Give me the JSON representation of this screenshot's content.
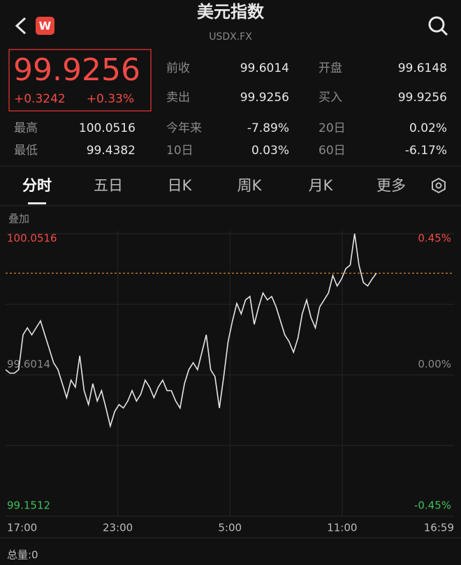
{
  "header": {
    "title": "美元指数",
    "subtitle": "USDX.FX"
  },
  "quote": {
    "price": "99.9256",
    "change": "+0.3242",
    "change_pct": "+0.33%"
  },
  "stats": {
    "rows": [
      [
        {
          "label": "前收",
          "value": "99.6014"
        },
        {
          "label": "开盘",
          "value": "99.6148"
        }
      ],
      [
        {
          "label": "卖出",
          "value": "99.9256"
        },
        {
          "label": "买入",
          "value": "99.9256"
        }
      ],
      [
        {
          "label": "最高",
          "value": "100.0516"
        },
        {
          "label": "今年来",
          "value": "-7.89%"
        },
        {
          "label": "20日",
          "value": "0.02%"
        }
      ],
      [
        {
          "label": "最低",
          "value": "99.4382"
        },
        {
          "label": "10日",
          "value": "0.03%"
        },
        {
          "label": "60日",
          "value": "-6.17%"
        }
      ]
    ]
  },
  "tabs": [
    "分时",
    "五日",
    "日K",
    "周K",
    "月K",
    "更多"
  ],
  "chart_data": {
    "type": "line",
    "overlay_label": "叠加",
    "volume_label": "总量:0",
    "color": "#e6e6e6",
    "x": [
      0,
      14,
      28,
      42,
      56,
      70,
      84,
      98,
      112,
      126,
      140,
      154,
      168,
      182,
      196,
      210,
      224,
      238,
      252,
      266,
      280,
      294,
      308,
      322,
      336,
      350,
      364,
      378,
      392,
      406,
      420,
      434,
      448,
      462,
      476,
      490,
      504,
      518,
      532,
      546,
      560,
      574,
      588,
      602,
      616,
      630,
      644,
      658,
      672,
      686,
      700,
      714,
      728,
      742,
      756,
      770,
      784,
      798,
      812,
      826,
      840,
      854,
      868,
      882,
      896,
      910,
      924,
      938,
      952,
      966,
      980,
      994,
      1008,
      1022,
      1036,
      1050,
      1064,
      1078,
      1092,
      1106,
      1120,
      1134,
      1148,
      1162,
      1176,
      1190
    ],
    "values": [
      99.6181,
      99.607,
      99.607,
      99.6181,
      99.7292,
      99.7515,
      99.7292,
      99.7515,
      99.7737,
      99.7292,
      99.6848,
      99.6403,
      99.6181,
      99.5736,
      99.5291,
      99.5847,
      99.5625,
      99.6625,
      99.5514,
      99.5069,
      99.5736,
      99.518,
      99.5514,
      99.4958,
      99.4382,
      99.4847,
      99.5069,
      99.4958,
      99.518,
      99.5514,
      99.518,
      99.5403,
      99.5847,
      99.5625,
      99.5291,
      99.5625,
      99.5847,
      99.5514,
      99.5514,
      99.518,
      99.4958,
      99.5736,
      99.6181,
      99.6403,
      99.6181,
      99.6737,
      99.7292,
      99.6181,
      99.5958,
      99.4958,
      99.5958,
      99.707,
      99.7737,
      99.8293,
      99.7959,
      99.8404,
      99.8515,
      99.7626,
      99.8182,
      99.8626,
      99.8404,
      99.8515,
      99.8182,
      99.7737,
      99.7292,
      99.707,
      99.6737,
      99.7181,
      99.7959,
      99.8404,
      99.7848,
      99.7515,
      99.8182,
      99.8404,
      99.8626,
      99.9182,
      99.8849,
      99.9071,
      99.9404,
      99.9516,
      100.0516,
      99.9516,
      99.896,
      99.8849,
      99.9071,
      99.9256
    ],
    "xlim": [
      0,
      1439
    ],
    "xticks": [
      {
        "value": 0,
        "label": "17:00"
      },
      {
        "value": 360,
        "label": "23:00"
      },
      {
        "value": 720,
        "label": "5:00"
      },
      {
        "value": 1080,
        "label": "11:00"
      },
      {
        "value": 1439,
        "label": "16:59"
      }
    ],
    "ylim": [
      99.1512,
      100.0516
    ],
    "yticks": [
      100.0516,
      99.6014,
      99.1512
    ],
    "y2lim": [
      -0.45,
      0.45
    ],
    "y2ticks": [
      {
        "value": 0.45,
        "label": "0.45%"
      },
      {
        "value": 0,
        "label": "0.00%"
      },
      {
        "value": -0.45,
        "label": "-0.45%"
      }
    ],
    "grid": true
  }
}
